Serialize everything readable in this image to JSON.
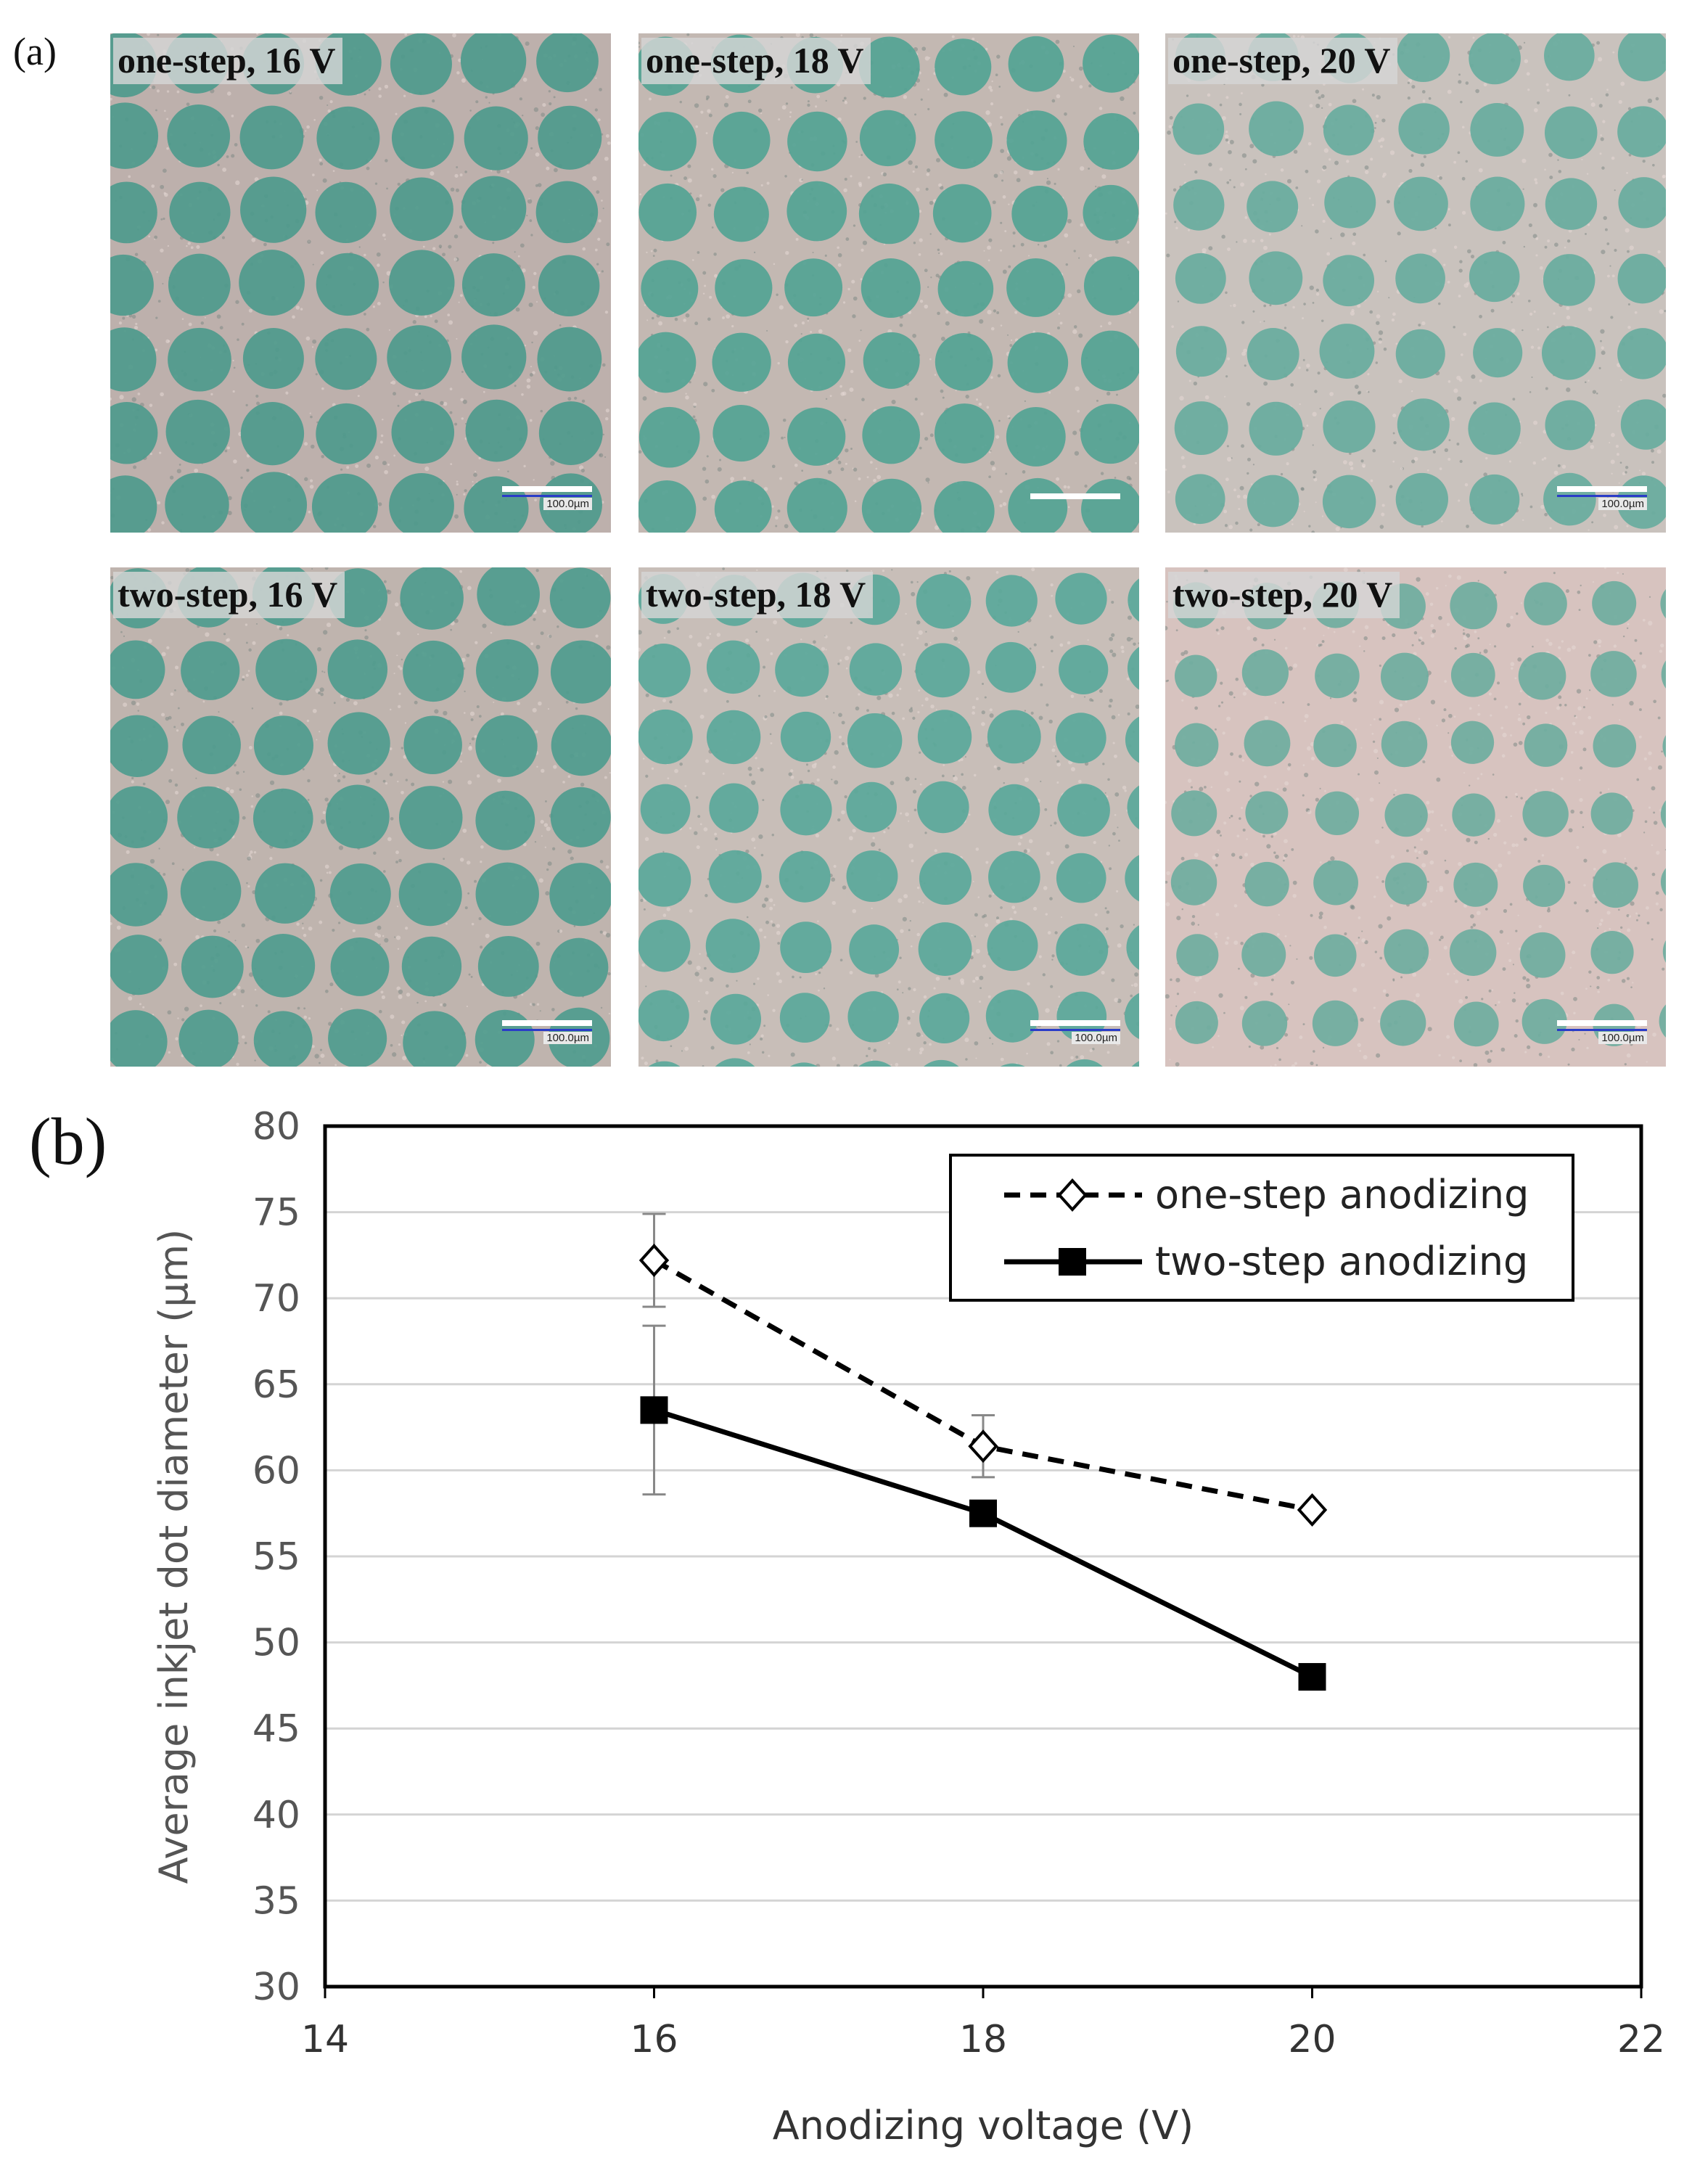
{
  "panel_labels": {
    "a": "(a)",
    "b": "(b)"
  },
  "micrographs": [
    {
      "title": "one-step, 16 V",
      "scale": "100.0µm",
      "dot_color": "#4e9a8c",
      "bg_color": "#bdb0ac",
      "show_scale_text": true
    },
    {
      "title": "one-step, 18 V",
      "scale": "",
      "dot_color": "#54a394",
      "bg_color": "#c3b8b2",
      "show_scale_text": false
    },
    {
      "title": "one-step, 20 V",
      "scale": "100.0µm",
      "dot_color": "#68ac9e",
      "bg_color": "#c9c2bd",
      "show_scale_text": true
    },
    {
      "title": "two-step, 16 V",
      "scale": "100.0µm",
      "dot_color": "#4f9c8e",
      "bg_color": "#bfb4ae",
      "show_scale_text": true
    },
    {
      "title": "two-step, 18 V",
      "scale": "100.0µm",
      "dot_color": "#5aa89a",
      "bg_color": "#c8beb8",
      "show_scale_text": true
    },
    {
      "title": "two-step, 20 V",
      "scale": "100.0µm",
      "dot_color": "#6fae9f",
      "bg_color": "#d7c3bf",
      "show_scale_text": true
    }
  ],
  "chart_data": {
    "type": "line",
    "title": "",
    "xlabel": "Anodizing voltage (V)",
    "ylabel": "Average inkjet dot diameter (µm)",
    "xlim": [
      14,
      22
    ],
    "ylim": [
      30,
      80
    ],
    "xticks": [
      14,
      16,
      18,
      20,
      22
    ],
    "yticks": [
      30,
      35,
      40,
      45,
      50,
      55,
      60,
      65,
      70,
      75,
      80
    ],
    "grid": true,
    "legend_position": "top-right",
    "series": [
      {
        "name": "one-step anodizing",
        "style": "dashed",
        "marker": "open-diamond",
        "color": "#000000",
        "x": [
          16,
          18,
          20
        ],
        "y": [
          72.2,
          61.4,
          57.7
        ],
        "err": [
          2.7,
          1.8,
          0
        ]
      },
      {
        "name": "two-step anodizing",
        "style": "solid",
        "marker": "filled-square",
        "color": "#000000",
        "x": [
          16,
          18,
          20
        ],
        "y": [
          63.5,
          57.5,
          48.0
        ],
        "err": [
          4.9,
          0,
          0
        ]
      }
    ]
  }
}
